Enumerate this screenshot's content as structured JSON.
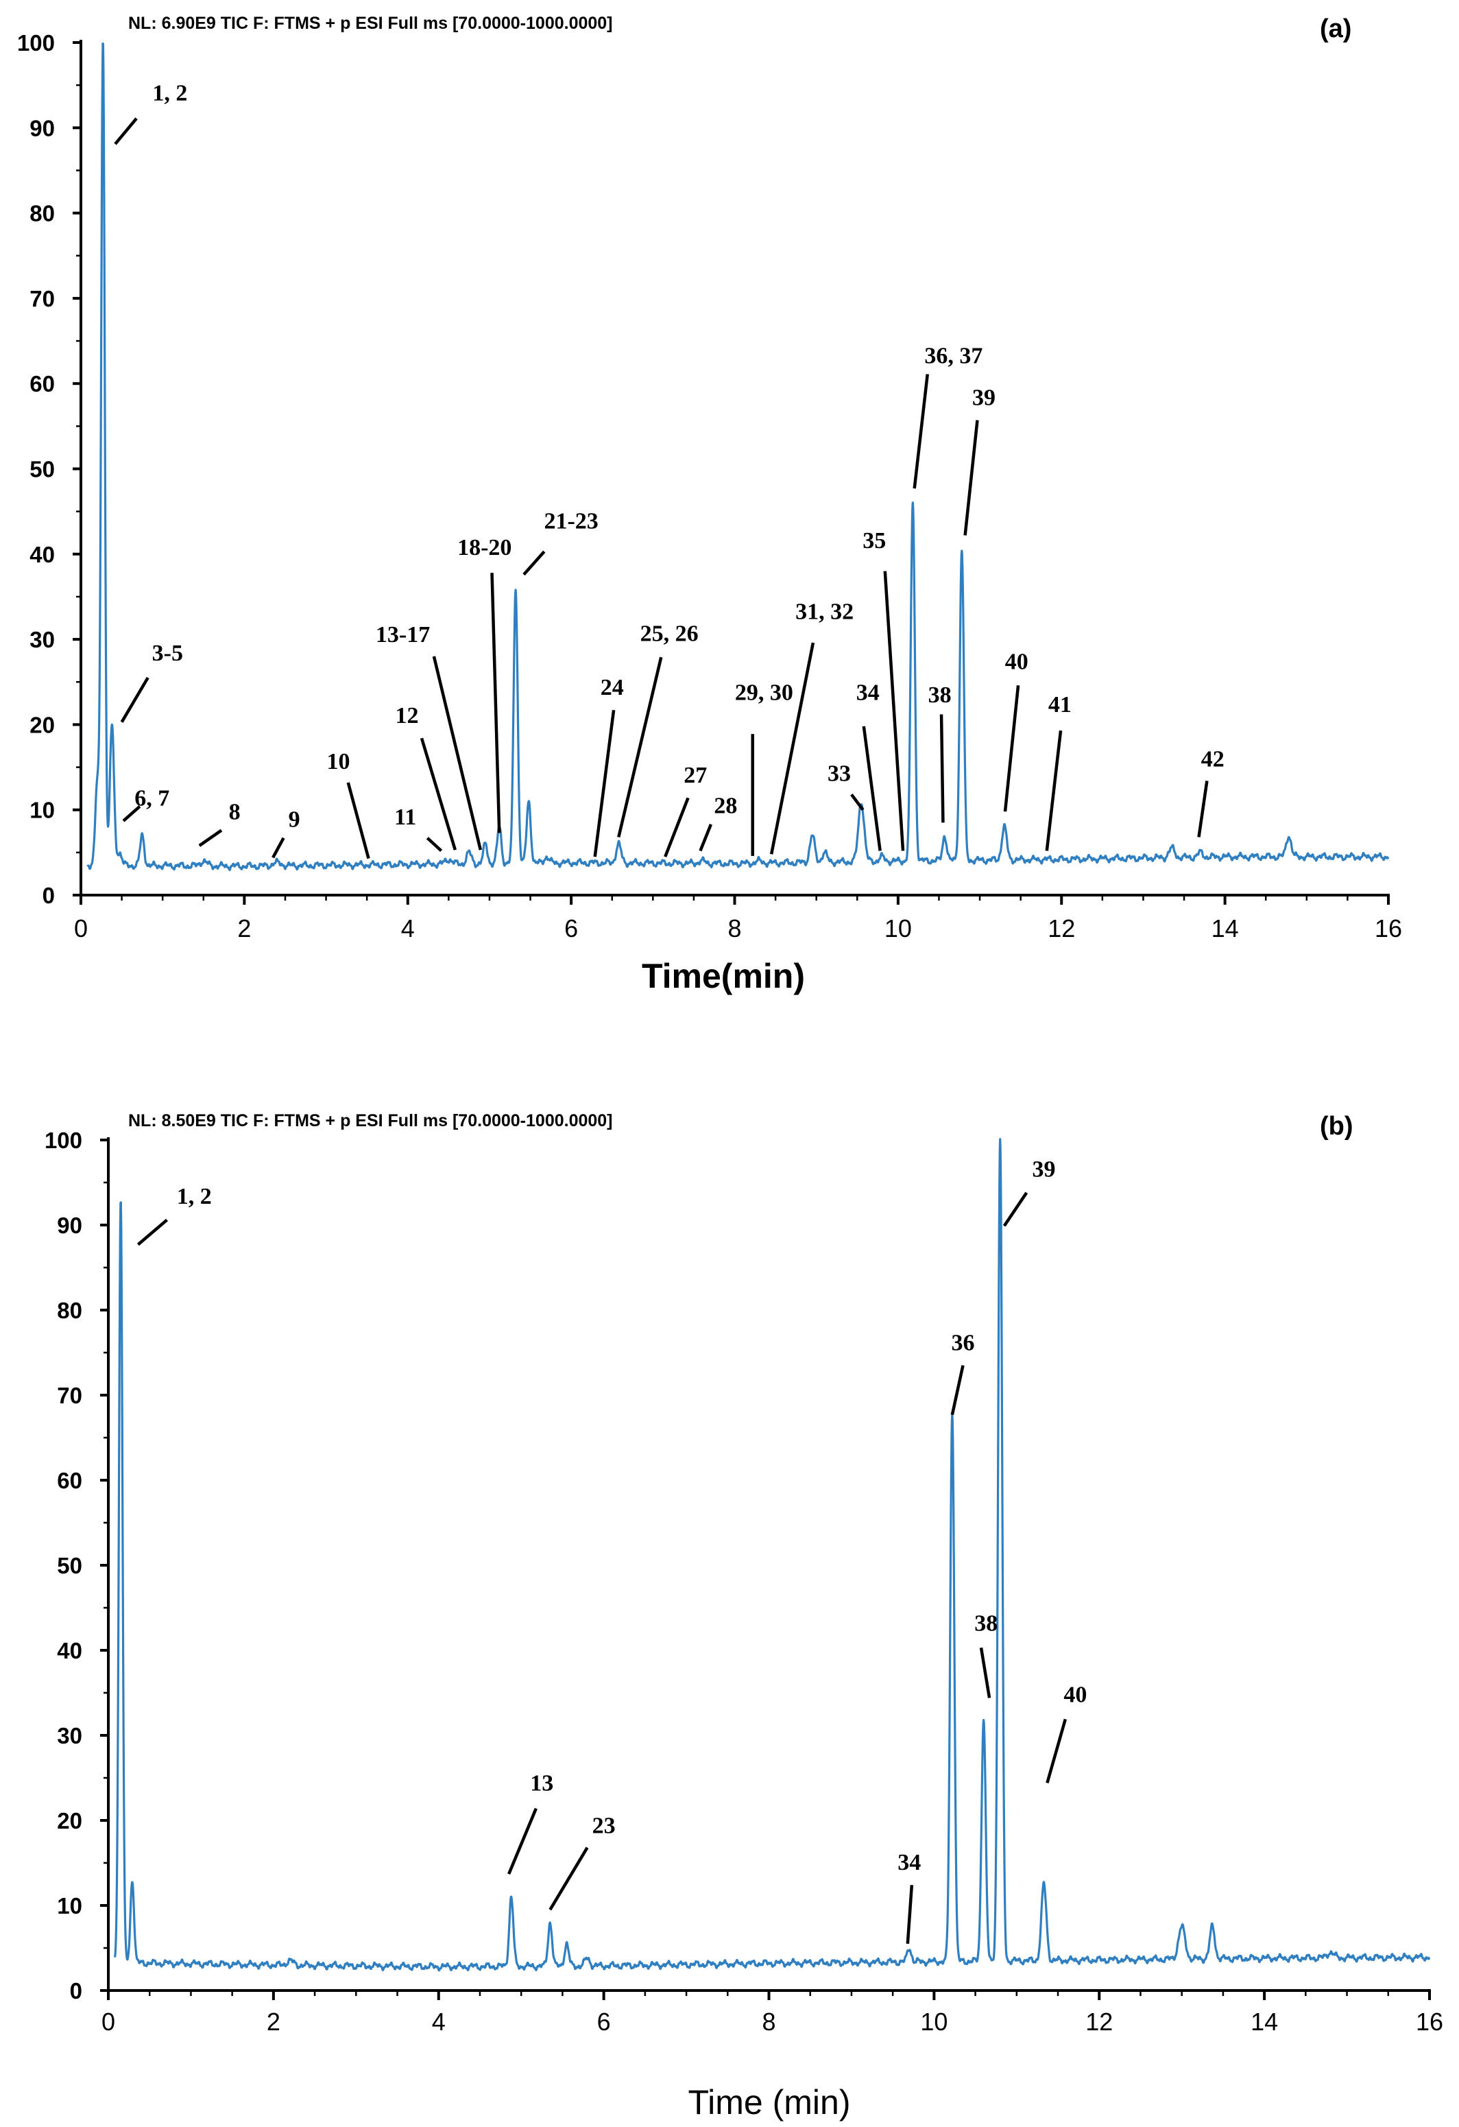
{
  "chart_data": [
    {
      "panel_label": "(a)",
      "type": "line",
      "header": "NL: 6.90E9  TIC F: FTMS + p ESI Full ms  [70.0000-1000.0000]",
      "xlabel": "Time(min)",
      "ylabel": "",
      "xlim": [
        0,
        16
      ],
      "ylim": [
        0,
        100
      ],
      "x_ticks": [
        "0",
        "2",
        "4",
        "6",
        "8",
        "10",
        "12",
        "14",
        "16"
      ],
      "y_ticks": [
        "0",
        "10",
        "20",
        "30",
        "40",
        "50",
        "60",
        "70",
        "80",
        "90",
        "100"
      ],
      "baseline": [
        [
          0,
          3.5
        ],
        [
          2,
          3.4
        ],
        [
          4,
          3.6
        ],
        [
          6,
          3.8
        ],
        [
          8,
          3.7
        ],
        [
          10,
          4.0
        ],
        [
          12,
          4.2
        ],
        [
          14,
          4.5
        ],
        [
          16,
          4.5
        ]
      ],
      "peaks": [
        {
          "t": 0.2,
          "h": 13,
          "w": 0.025
        },
        {
          "t": 0.27,
          "h": 100,
          "w": 0.022
        },
        {
          "t": 0.38,
          "h": 20,
          "w": 0.025
        },
        {
          "t": 0.47,
          "h": 5,
          "w": 0.03
        },
        {
          "t": 0.75,
          "h": 7,
          "w": 0.025
        },
        {
          "t": 1.5,
          "h": 4,
          "w": 0.04
        },
        {
          "t": 2.4,
          "h": 3.8,
          "w": 0.05
        },
        {
          "t": 4.5,
          "h": 4.2,
          "w": 0.04
        },
        {
          "t": 4.75,
          "h": 5,
          "w": 0.03
        },
        {
          "t": 4.95,
          "h": 6,
          "w": 0.025
        },
        {
          "t": 5.12,
          "h": 8,
          "w": 0.025
        },
        {
          "t": 5.32,
          "h": 36,
          "w": 0.025
        },
        {
          "t": 5.48,
          "h": 11,
          "w": 0.025
        },
        {
          "t": 5.7,
          "h": 4.5,
          "w": 0.03
        },
        {
          "t": 6.58,
          "h": 6,
          "w": 0.03
        },
        {
          "t": 7.6,
          "h": 4,
          "w": 0.04
        },
        {
          "t": 8.3,
          "h": 4,
          "w": 0.04
        },
        {
          "t": 8.95,
          "h": 7,
          "w": 0.03
        },
        {
          "t": 9.1,
          "h": 5,
          "w": 0.03
        },
        {
          "t": 9.55,
          "h": 11,
          "w": 0.035
        },
        {
          "t": 9.8,
          "h": 4.5,
          "w": 0.03
        },
        {
          "t": 10.18,
          "h": 46,
          "w": 0.025
        },
        {
          "t": 10.57,
          "h": 7,
          "w": 0.025
        },
        {
          "t": 10.78,
          "h": 40.5,
          "w": 0.025
        },
        {
          "t": 11.3,
          "h": 8,
          "w": 0.03
        },
        {
          "t": 13.35,
          "h": 5.5,
          "w": 0.035
        },
        {
          "t": 13.7,
          "h": 5,
          "w": 0.03
        },
        {
          "t": 14.78,
          "h": 7,
          "w": 0.03
        }
      ],
      "annotations": [
        {
          "text": "1, 2",
          "x": 1.09,
          "y": 93.2,
          "line": [
            [
              0.68,
              91.1
            ],
            [
              0.42,
              88.1
            ]
          ]
        },
        {
          "text": "3-5",
          "x": 1.06,
          "y": 27.5,
          "line": [
            [
              0.82,
              25.5
            ],
            [
              0.5,
              20.3
            ]
          ]
        },
        {
          "text": "6, 7",
          "x": 0.87,
          "y": 10.5,
          "line": [
            [
              0.72,
              10.4
            ],
            [
              0.52,
              8.7
            ]
          ]
        },
        {
          "text": "8",
          "x": 1.88,
          "y": 8.9,
          "line": [
            [
              1.72,
              7.6
            ],
            [
              1.45,
              5.8
            ]
          ]
        },
        {
          "text": "9",
          "x": 2.61,
          "y": 8.0,
          "line": [
            [
              2.48,
              6.7
            ],
            [
              2.35,
              4.4
            ]
          ]
        },
        {
          "text": "10",
          "x": 3.15,
          "y": 14.8,
          "line": [
            [
              3.27,
              13.2
            ],
            [
              3.52,
              4.3
            ]
          ]
        },
        {
          "text": "11",
          "x": 3.97,
          "y": 8.3,
          "line": [
            [
              4.24,
              6.7
            ],
            [
              4.41,
              5.2
            ]
          ]
        },
        {
          "text": "12",
          "x": 3.99,
          "y": 20.2,
          "line": [
            [
              4.17,
              18.4
            ],
            [
              4.58,
              5.3
            ]
          ]
        },
        {
          "text": "13-17",
          "x": 3.94,
          "y": 29.7,
          "line": [
            [
              4.32,
              28.0
            ],
            [
              4.89,
              5.3
            ]
          ]
        },
        {
          "text": "18-20",
          "x": 4.94,
          "y": 39.9,
          "line": [
            [
              5.03,
              37.8
            ],
            [
              5.12,
              7.3
            ]
          ]
        },
        {
          "text": "21-23",
          "x": 6.0,
          "y": 43.0,
          "line": [
            [
              5.67,
              40.3
            ],
            [
              5.42,
              37.6
            ]
          ]
        },
        {
          "text": "24",
          "x": 6.5,
          "y": 23.5,
          "line": [
            [
              6.52,
              21.7
            ],
            [
              6.29,
              4.5
            ]
          ]
        },
        {
          "text": "25, 26",
          "x": 7.2,
          "y": 29.8,
          "line": [
            [
              7.1,
              27.9
            ],
            [
              6.58,
              6.8
            ]
          ]
        },
        {
          "text": "27",
          "x": 7.52,
          "y": 13.2,
          "line": [
            [
              7.43,
              11.4
            ],
            [
              7.15,
              4.5
            ]
          ]
        },
        {
          "text": "28",
          "x": 7.89,
          "y": 9.6,
          "line": [
            [
              7.71,
              8.3
            ],
            [
              7.58,
              5.2
            ]
          ]
        },
        {
          "text": "29, 30",
          "x": 8.36,
          "y": 22.9,
          "line": [
            [
              8.22,
              18.9
            ],
            [
              8.22,
              4.6
            ]
          ]
        },
        {
          "text": "31, 32",
          "x": 9.1,
          "y": 32.4,
          "line": [
            [
              8.96,
              29.6
            ],
            [
              8.45,
              4.8
            ]
          ]
        },
        {
          "text": "33",
          "x": 9.28,
          "y": 13.4,
          "line": [
            [
              9.43,
              11.8
            ],
            [
              9.57,
              10.0
            ]
          ]
        },
        {
          "text": "34",
          "x": 9.63,
          "y": 22.9,
          "line": [
            [
              9.58,
              19.8
            ],
            [
              9.78,
              5.2
            ]
          ]
        },
        {
          "text": "35",
          "x": 9.71,
          "y": 40.7,
          "line": [
            [
              9.84,
              38.0
            ],
            [
              10.06,
              5.2
            ]
          ]
        },
        {
          "text": "36, 37",
          "x": 10.68,
          "y": 62.4,
          "line": [
            [
              10.36,
              61.1
            ],
            [
              10.2,
              47.7
            ]
          ]
        },
        {
          "text": "38",
          "x": 10.51,
          "y": 22.6,
          "line": [
            [
              10.53,
              21.2
            ],
            [
              10.55,
              8.5
            ]
          ]
        },
        {
          "text": "39",
          "x": 11.05,
          "y": 57.5,
          "line": [
            [
              10.97,
              55.7
            ],
            [
              10.82,
              42.2
            ]
          ]
        },
        {
          "text": "40",
          "x": 11.45,
          "y": 26.5,
          "line": [
            [
              11.47,
              24.6
            ],
            [
              11.31,
              9.8
            ]
          ]
        },
        {
          "text": "41",
          "x": 11.98,
          "y": 21.5,
          "line": [
            [
              11.99,
              19.3
            ],
            [
              11.82,
              5.2
            ]
          ]
        },
        {
          "text": "42",
          "x": 13.85,
          "y": 15.1,
          "line": [
            [
              13.78,
              13.4
            ],
            [
              13.68,
              6.8
            ]
          ]
        }
      ]
    },
    {
      "panel_label": "(b)",
      "type": "line",
      "header": "NL: 8.50E9  TIC F: FTMS + p ESI Full ms  [70.0000-1000.0000]",
      "xlabel": "Time (min)",
      "ylabel": "",
      "xlim": [
        0,
        16
      ],
      "ylim": [
        0,
        100
      ],
      "x_ticks": [
        "0",
        "2",
        "4",
        "6",
        "8",
        "10",
        "12",
        "14",
        "16"
      ],
      "y_ticks": [
        "0",
        "10",
        "20",
        "30",
        "40",
        "50",
        "60",
        "70",
        "80",
        "90",
        "100"
      ],
      "baseline": [
        [
          0,
          3.3
        ],
        [
          2,
          3.0
        ],
        [
          4,
          2.8
        ],
        [
          6,
          2.9
        ],
        [
          8,
          3.2
        ],
        [
          10,
          3.4
        ],
        [
          12,
          3.6
        ],
        [
          14,
          3.8
        ],
        [
          16,
          3.9
        ]
      ],
      "peaks": [
        {
          "t": 0.15,
          "h": 93,
          "w": 0.022
        },
        {
          "t": 0.29,
          "h": 13,
          "w": 0.022
        },
        {
          "t": 2.2,
          "h": 3.5,
          "w": 0.04
        },
        {
          "t": 4.88,
          "h": 11,
          "w": 0.025
        },
        {
          "t": 5.35,
          "h": 8,
          "w": 0.025
        },
        {
          "t": 5.55,
          "h": 5.5,
          "w": 0.025
        },
        {
          "t": 5.8,
          "h": 3.8,
          "w": 0.03
        },
        {
          "t": 9.7,
          "h": 5,
          "w": 0.025
        },
        {
          "t": 10.22,
          "h": 68,
          "w": 0.025
        },
        {
          "t": 10.6,
          "h": 32,
          "w": 0.025
        },
        {
          "t": 10.8,
          "h": 100,
          "w": 0.025
        },
        {
          "t": 11.33,
          "h": 12.5,
          "w": 0.03
        },
        {
          "t": 13.0,
          "h": 7.5,
          "w": 0.04
        },
        {
          "t": 13.37,
          "h": 7.5,
          "w": 0.03
        },
        {
          "t": 14.8,
          "h": 4.5,
          "w": 0.04
        }
      ],
      "annotations": [
        {
          "text": "1, 2",
          "x": 1.04,
          "y": 92.5,
          "line": [
            [
              0.71,
              90.6
            ],
            [
              0.36,
              87.7
            ]
          ]
        },
        {
          "text": "13",
          "x": 5.25,
          "y": 23.5,
          "line": [
            [
              5.18,
              21.4
            ],
            [
              4.85,
              13.7
            ]
          ]
        },
        {
          "text": "23",
          "x": 6.0,
          "y": 18.5,
          "line": [
            [
              5.8,
              16.8
            ],
            [
              5.35,
              9.5
            ]
          ]
        },
        {
          "text": "34",
          "x": 9.7,
          "y": 14.2,
          "line": [
            [
              9.73,
              12.4
            ],
            [
              9.68,
              5.5
            ]
          ]
        },
        {
          "text": "36",
          "x": 10.35,
          "y": 75.3,
          "line": [
            [
              10.35,
              73.5
            ],
            [
              10.22,
              67.7
            ]
          ]
        },
        {
          "text": "38",
          "x": 10.63,
          "y": 42.3,
          "line": [
            [
              10.57,
              40.3
            ],
            [
              10.67,
              34.4
            ]
          ]
        },
        {
          "text": "39",
          "x": 11.33,
          "y": 95.7,
          "line": [
            [
              11.12,
              93.8
            ],
            [
              10.85,
              89.9
            ]
          ]
        },
        {
          "text": "40",
          "x": 11.71,
          "y": 33.9,
          "line": [
            [
              11.59,
              31.9
            ],
            [
              11.37,
              24.4
            ]
          ]
        }
      ]
    }
  ]
}
